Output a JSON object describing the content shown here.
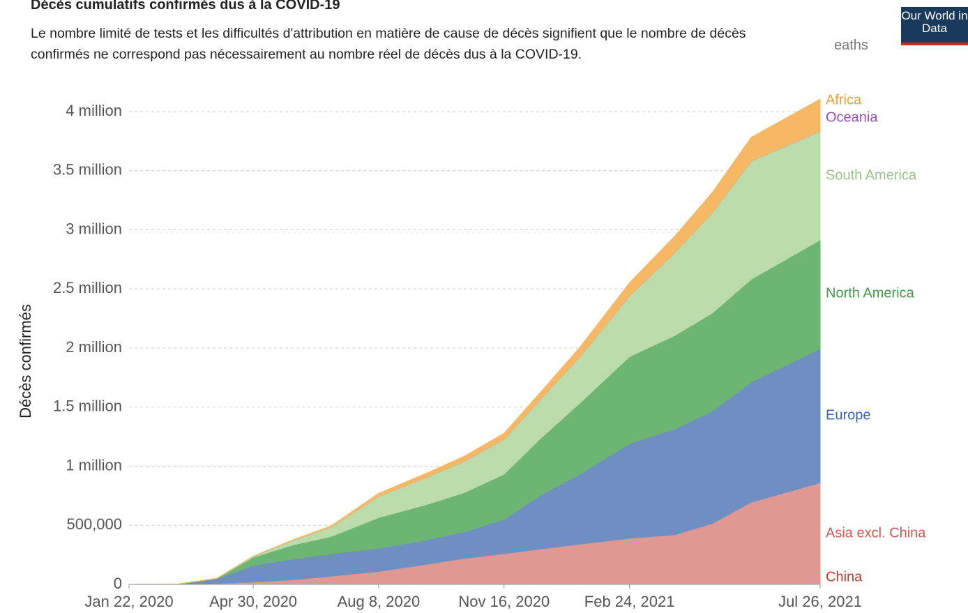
{
  "logo": "Our World in Data",
  "clipped_label": "eaths",
  "chart_data": {
    "type": "area",
    "stacked": true,
    "title": "Décès cumulatifs confirmés dus à la COVID-19",
    "subtitle": "Le nombre limité de tests et les difficultés d'attribution en matière de cause de décès signifient que le nombre de décès confirmés ne correspond pas nécessairement au nombre réel de décès dus à la COVID-19.",
    "y_label": "Décès confirmés",
    "x": [
      "2020-01-22",
      "2020-03-01",
      "2020-04-01",
      "2020-04-30",
      "2020-06-01",
      "2020-07-01",
      "2020-08-08",
      "2020-09-15",
      "2020-10-15",
      "2020-11-16",
      "2020-12-15",
      "2021-01-15",
      "2021-02-24",
      "2021-04-01",
      "2021-05-01",
      "2021-06-01",
      "2021-07-26"
    ],
    "xlim": [
      "2020-01-22",
      "2021-07-26"
    ],
    "xticks": [
      {
        "value": "2020-01-22",
        "label": "Jan 22, 2020"
      },
      {
        "value": "2020-04-30",
        "label": "Apr 30, 2020"
      },
      {
        "value": "2020-08-08",
        "label": "Aug 8, 2020"
      },
      {
        "value": "2020-11-16",
        "label": "Nov 16, 2020"
      },
      {
        "value": "2021-02-24",
        "label": "Feb 24, 2021"
      },
      {
        "value": "2021-07-26",
        "label": "Jul 26, 2021"
      }
    ],
    "ylim": [
      0,
      4000000
    ],
    "yticks": [
      0,
      {
        "value": 500000,
        "label": "500,000"
      },
      {
        "value": 1000000,
        "label": "1 million"
      },
      {
        "value": 1500000,
        "label": "1.5 million"
      },
      {
        "value": 2000000,
        "label": "2 million"
      },
      {
        "value": 2500000,
        "label": "2.5 million"
      },
      {
        "value": 3000000,
        "label": "3 million"
      },
      {
        "value": 3500000,
        "label": "3.5 million"
      },
      {
        "value": 4000000,
        "label": "4 million"
      }
    ],
    "grid": true,
    "series": [
      {
        "name": "China",
        "color": "#e06666",
        "label_color": "#c0392b",
        "values": [
          17,
          2870,
          3310,
          4640,
          4640,
          4640,
          4660,
          4740,
          4740,
          4740,
          4760,
          4800,
          4830,
          4840,
          4850,
          4860,
          4880
        ]
      },
      {
        "name": "Asia excl. China",
        "color": "#df9892",
        "label_color": "#d9534f",
        "values": [
          0,
          0,
          4000,
          15000,
          35000,
          65000,
          105000,
          165000,
          215000,
          255000,
          295000,
          335000,
          385000,
          415000,
          510000,
          690000,
          855000
        ]
      },
      {
        "name": "Europe",
        "color": "#6f8fc3",
        "label_color": "#3a64b0",
        "values": [
          0,
          30,
          40000,
          140000,
          175000,
          190000,
          195000,
          205000,
          225000,
          290000,
          455000,
          590000,
          800000,
          895000,
          950000,
          1016000,
          1134000
        ]
      },
      {
        "name": "North America",
        "color": "#6db572",
        "label_color": "#3f9a49",
        "values": [
          0,
          1,
          3000,
          70000,
          120000,
          145000,
          260000,
          300000,
          330000,
          383000,
          480000,
          600000,
          737000,
          790000,
          830000,
          870000,
          920000
        ]
      },
      {
        "name": "South America",
        "color": "#bbdbaa",
        "label_color": "#97c28a",
        "values": [
          0,
          0,
          600,
          8000,
          40000,
          80000,
          180000,
          230000,
          265000,
          295000,
          330000,
          390000,
          514000,
          700000,
          850000,
          1000000,
          920000
        ]
      },
      {
        "name": "Oceania",
        "color": "#a678c0",
        "label_color": "#9a4db8",
        "values": [
          0,
          0,
          20,
          100,
          130,
          130,
          260,
          900,
          930,
          950,
          960,
          980,
          1000,
          1000,
          1000,
          1000,
          1500
        ]
      },
      {
        "name": "Africa",
        "color": "#f7b865",
        "label_color": "#f0a030",
        "values": [
          0,
          0,
          200,
          1800,
          4500,
          10000,
          25000,
          35000,
          42000,
          50000,
          60000,
          80000,
          110000,
          140000,
          170000,
          200000,
          270000
        ]
      }
    ]
  }
}
